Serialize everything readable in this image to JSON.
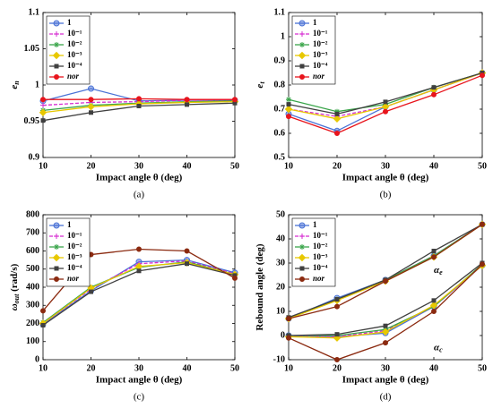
{
  "chart_data": [
    {
      "type": "line",
      "caption": "(a)",
      "xlabel": "Impact angle θ (deg)",
      "ylabel": {
        "text": "e",
        "sub": "n"
      },
      "x": [
        10,
        20,
        30,
        40,
        50
      ],
      "xlim": [
        10,
        50
      ],
      "xticks": [
        10,
        20,
        30,
        40,
        50
      ],
      "ylim": [
        0.9,
        1.1
      ],
      "yticks": [
        0.9,
        0.95,
        1,
        1.05,
        1.1
      ],
      "legend": "upper left",
      "series": [
        {
          "name": "1",
          "color": "#4a72d6",
          "marker": "circle",
          "values": [
            0.978,
            0.995,
            0.978,
            0.979,
            0.979
          ]
        },
        {
          "name": "10⁻¹",
          "color": "#d62ad0",
          "marker": "plus",
          "dash": true,
          "values": [
            0.972,
            0.976,
            0.977,
            0.979,
            0.979
          ]
        },
        {
          "name": "10⁻²",
          "color": "#3aa54a",
          "marker": "star",
          "values": [
            0.965,
            0.972,
            0.975,
            0.977,
            0.978
          ]
        },
        {
          "name": "10⁻³",
          "color": "#e8c800",
          "marker": "diamond",
          "values": [
            0.962,
            0.97,
            0.974,
            0.976,
            0.977
          ]
        },
        {
          "name": "10⁻⁴",
          "color": "#404040",
          "marker": "square",
          "values": [
            0.951,
            0.962,
            0.971,
            0.973,
            0.975
          ]
        },
        {
          "name": "nor",
          "color": "#e8141c",
          "marker": "dot",
          "values": [
            0.98,
            0.98,
            0.981,
            0.98,
            0.98
          ]
        }
      ]
    },
    {
      "type": "line",
      "caption": "(b)",
      "xlabel": "Impact angle θ (deg)",
      "ylabel": {
        "text": "e",
        "sub": "t"
      },
      "x": [
        10,
        20,
        30,
        40,
        50
      ],
      "xlim": [
        10,
        50
      ],
      "xticks": [
        10,
        20,
        30,
        40,
        50
      ],
      "ylim": [
        0.5,
        1.1
      ],
      "yticks": [
        0.5,
        0.6,
        0.7,
        0.8,
        0.9,
        1,
        1.1
      ],
      "legend": "upper left",
      "series": [
        {
          "name": "1",
          "color": "#4a72d6",
          "marker": "circle",
          "values": [
            0.68,
            0.61,
            0.71,
            0.78,
            0.85
          ]
        },
        {
          "name": "10⁻¹",
          "color": "#d62ad0",
          "marker": "plus",
          "dash": true,
          "values": [
            0.7,
            0.67,
            0.71,
            0.78,
            0.85
          ]
        },
        {
          "name": "10⁻²",
          "color": "#3aa54a",
          "marker": "star",
          "values": [
            0.74,
            0.69,
            0.72,
            0.79,
            0.85
          ]
        },
        {
          "name": "10⁻³",
          "color": "#e8c800",
          "marker": "diamond",
          "values": [
            0.7,
            0.66,
            0.71,
            0.78,
            0.85
          ]
        },
        {
          "name": "10⁻⁴",
          "color": "#404040",
          "marker": "square",
          "values": [
            0.72,
            0.68,
            0.73,
            0.79,
            0.85
          ]
        },
        {
          "name": "nor",
          "color": "#e8141c",
          "marker": "dot",
          "values": [
            0.67,
            0.6,
            0.69,
            0.76,
            0.84
          ]
        }
      ]
    },
    {
      "type": "line",
      "caption": "(c)",
      "xlabel": "Impact angle θ (deg)",
      "ylabel": {
        "text": "ω",
        "sub": "out",
        "rest": " (rad/s)"
      },
      "x": [
        10,
        20,
        30,
        40,
        50
      ],
      "xlim": [
        10,
        50
      ],
      "xticks": [
        10,
        20,
        30,
        40,
        50
      ],
      "ylim": [
        0,
        800
      ],
      "yticks": [
        0,
        100,
        200,
        300,
        400,
        500,
        600,
        700,
        800
      ],
      "legend": "upper left",
      "series": [
        {
          "name": "1",
          "color": "#4a72d6",
          "marker": "circle",
          "values": [
            195,
            380,
            540,
            550,
            480
          ]
        },
        {
          "name": "10⁻¹",
          "color": "#d62ad0",
          "marker": "plus",
          "dash": true,
          "values": [
            200,
            390,
            530,
            545,
            475
          ]
        },
        {
          "name": "10⁻²",
          "color": "#3aa54a",
          "marker": "star",
          "values": [
            205,
            400,
            510,
            540,
            470
          ]
        },
        {
          "name": "10⁻³",
          "color": "#e8c800",
          "marker": "diamond",
          "values": [
            200,
            395,
            515,
            535,
            470
          ]
        },
        {
          "name": "10⁻⁴",
          "color": "#404040",
          "marker": "square",
          "values": [
            190,
            375,
            490,
            530,
            465
          ]
        },
        {
          "name": "nor",
          "color": "#8b2a10",
          "marker": "dot",
          "values": [
            270,
            580,
            610,
            600,
            450
          ]
        }
      ]
    },
    {
      "type": "line",
      "caption": "(d)",
      "xlabel": "Impact angle θ (deg)",
      "ylabel": {
        "text": "Rebound angle (deg)"
      },
      "x": [
        10,
        20,
        30,
        40,
        50
      ],
      "xlim": [
        10,
        50
      ],
      "xticks": [
        10,
        20,
        30,
        40,
        50
      ],
      "ylim": [
        -10,
        50
      ],
      "yticks": [
        -10,
        0,
        10,
        20,
        30,
        40,
        50
      ],
      "legend": "upper left",
      "annotations": [
        {
          "base": "α",
          "sub": "e"
        },
        {
          "base": "α",
          "sub": "c"
        }
      ],
      "series": [
        {
          "name": "1",
          "color": "#4a72d6",
          "marker": "circle",
          "values": [
            7,
            15.5,
            23,
            33,
            46
          ],
          "values_c": [
            0,
            -0.5,
            1,
            12,
            29
          ]
        },
        {
          "name": "10⁻¹",
          "color": "#d62ad0",
          "marker": "plus",
          "dash": true,
          "values": [
            7,
            15,
            23,
            33,
            46
          ],
          "values_c": [
            0,
            -0.5,
            2,
            12,
            29
          ]
        },
        {
          "name": "10⁻²",
          "color": "#3aa54a",
          "marker": "star",
          "values": [
            7,
            15,
            23,
            33,
            46
          ],
          "values_c": [
            0,
            0,
            2.5,
            12,
            29.5
          ]
        },
        {
          "name": "10⁻³",
          "color": "#e8c800",
          "marker": "diamond",
          "values": [
            7,
            14.5,
            22.5,
            32.5,
            46
          ],
          "values_c": [
            -0.5,
            -1,
            1.5,
            12.5,
            29
          ]
        },
        {
          "name": "10⁻⁴",
          "color": "#404040",
          "marker": "square",
          "values": [
            7.5,
            15,
            23,
            35,
            46
          ],
          "values_c": [
            0,
            0.5,
            4,
            14.5,
            30
          ]
        },
        {
          "name": "nor",
          "color": "#8b2a10",
          "marker": "dot",
          "values": [
            7,
            12,
            22.5,
            32.5,
            46
          ],
          "values_c": [
            -1,
            -10,
            -3,
            10,
            29.5
          ]
        }
      ]
    }
  ]
}
